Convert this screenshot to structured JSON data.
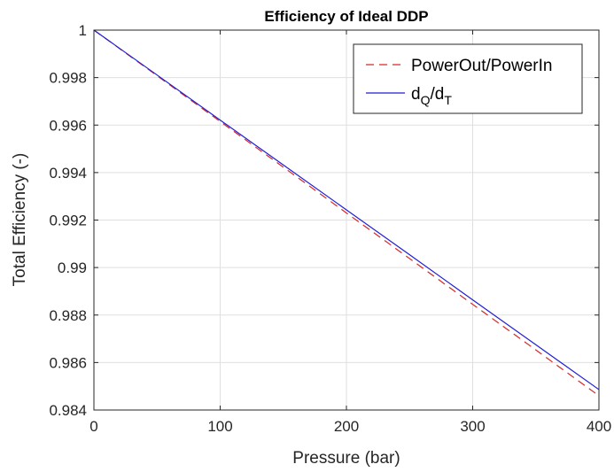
{
  "chart_data": {
    "type": "line",
    "title": "Efficiency of Ideal DDP",
    "xlabel": "Pressure (bar)",
    "ylabel": "Total Efficiency (-)",
    "xlim": [
      0,
      400
    ],
    "ylim": [
      0.984,
      1
    ],
    "xticks": [
      0,
      100,
      200,
      300,
      400
    ],
    "xtick_labels": [
      "0",
      "100",
      "200",
      "300",
      "400"
    ],
    "yticks": [
      0.984,
      0.986,
      0.988,
      0.99,
      0.992,
      0.994,
      0.996,
      0.998,
      1
    ],
    "ytick_labels": [
      "0.984",
      "0.986",
      "0.988",
      "0.99",
      "0.992",
      "0.994",
      "0.996",
      "0.998",
      "1"
    ],
    "grid": true,
    "legend_position": "top-right",
    "series": [
      {
        "name": "PowerOut/PowerIn",
        "color": "#d62728",
        "style": "dashed",
        "x": [
          0,
          50,
          100,
          150,
          200,
          250,
          300,
          350,
          400
        ],
        "y": [
          1.0,
          0.99808,
          0.99615,
          0.99423,
          0.9923,
          0.99038,
          0.98845,
          0.98653,
          0.9846
        ]
      },
      {
        "name": "dQ/dT",
        "legend_parts": {
          "d1": "d",
          "sub1": "Q",
          "slash": "/d",
          "sub2": "T"
        },
        "color": "#1f1fd6",
        "style": "solid",
        "x": [
          0,
          50,
          100,
          150,
          200,
          250,
          300,
          350,
          400
        ],
        "y": [
          1.0,
          0.99811,
          0.99621,
          0.99432,
          0.99243,
          0.99054,
          0.98864,
          0.98675,
          0.98486
        ]
      }
    ]
  }
}
